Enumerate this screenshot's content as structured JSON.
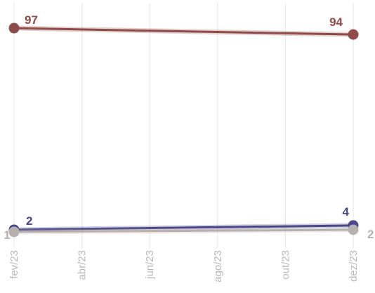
{
  "chart_data": {
    "type": "line",
    "title": "",
    "xlabel": "",
    "ylabel": "",
    "x": [
      "fev/23",
      "abr/23",
      "jun/23",
      "ago/23",
      "out/23",
      "dez/23"
    ],
    "ylim": [
      0,
      100
    ],
    "grid": "vertical",
    "legend": "none",
    "series": [
      {
        "color": "#8f4a4a",
        "points": [
          {
            "x": "fev/23",
            "y": 97
          },
          {
            "x": "dez/23",
            "y": 94
          }
        ],
        "labels": [
          "97",
          "94"
        ]
      },
      {
        "color": "#4a4788",
        "points": [
          {
            "x": "fev/23",
            "y": 2
          },
          {
            "x": "dez/23",
            "y": 4
          }
        ],
        "labels": [
          "2",
          "4"
        ]
      },
      {
        "color": "#b8b0ac",
        "points": [
          {
            "x": "fev/23",
            "y": 1
          },
          {
            "x": "dez/23",
            "y": 2
          }
        ],
        "labels": [
          "1",
          "2"
        ]
      }
    ]
  }
}
